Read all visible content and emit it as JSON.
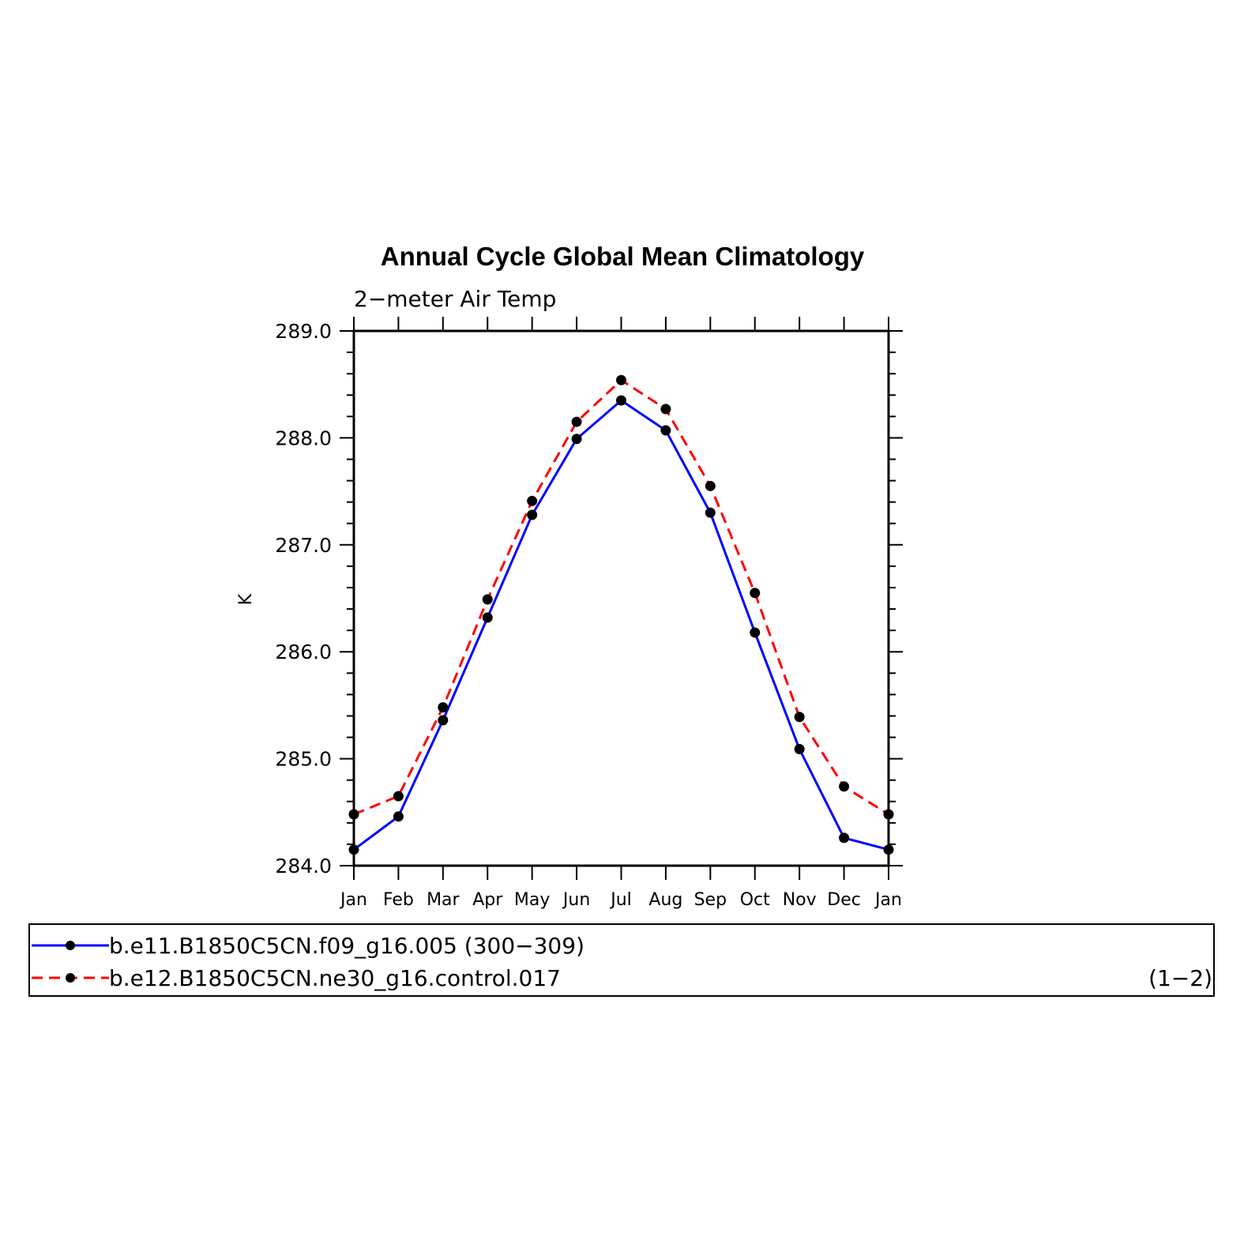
{
  "chart_data": {
    "type": "line",
    "title": "Annual Cycle Global Mean Climatology",
    "subtitle": "2−meter Air Temp",
    "ylabel": "K",
    "xlabel": "",
    "categories": [
      "Jan",
      "Feb",
      "Mar",
      "Apr",
      "May",
      "Jun",
      "Jul",
      "Aug",
      "Sep",
      "Oct",
      "Nov",
      "Dec",
      "Jan"
    ],
    "ylim": [
      284.0,
      289.0
    ],
    "yticks": [
      "284.0",
      "285.0",
      "286.0",
      "287.0",
      "288.0",
      "289.0"
    ],
    "grid": false,
    "legend_position": "bottom",
    "series": [
      {
        "name": "b.e11.B1850C5CN.f09_g16.005 (300−309)",
        "color": "#0000ff",
        "dash": "solid",
        "values": [
          284.15,
          284.46,
          285.36,
          286.32,
          287.28,
          287.99,
          288.35,
          288.07,
          287.3,
          286.18,
          285.09,
          284.26,
          284.15
        ]
      },
      {
        "name": "b.e12.B1850C5CN.ne30_g16.control.017",
        "color": "#ff0000",
        "dash": "dashed",
        "values": [
          284.48,
          284.65,
          285.48,
          286.49,
          287.41,
          288.15,
          288.54,
          288.27,
          287.55,
          286.55,
          285.39,
          284.74,
          284.48
        ]
      }
    ],
    "annotation": "(1−2)"
  }
}
